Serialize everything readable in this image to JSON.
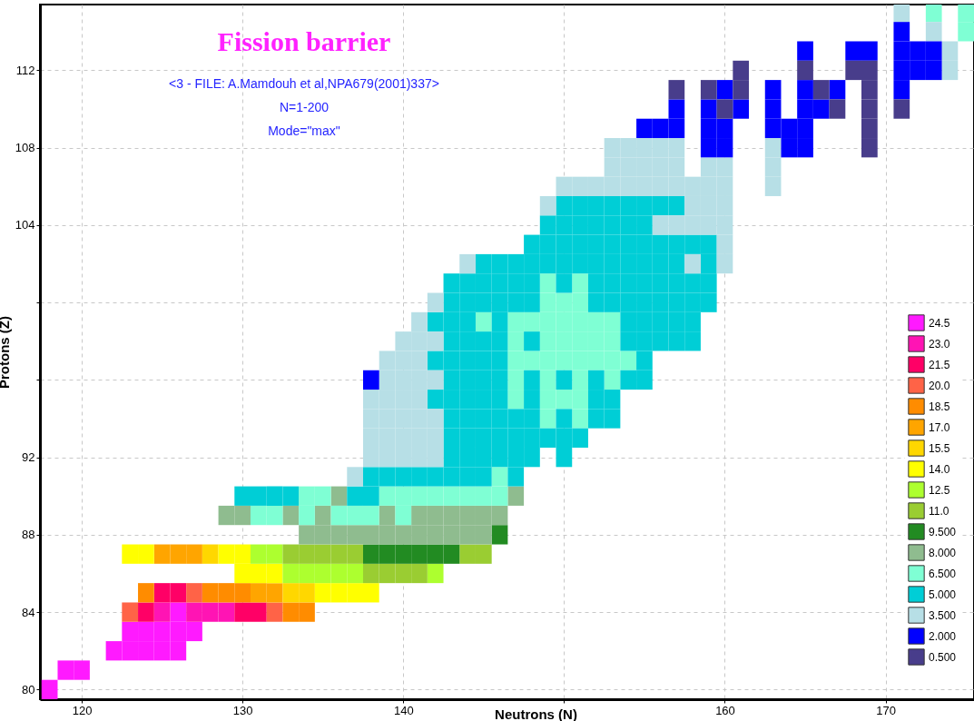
{
  "chart_data": {
    "type": "scatter",
    "title": "Fission barrier",
    "annotations": [
      "<3 - FILE: A.Mamdouh et al,NPA679(2001)337>",
      "N=1-200",
      "Mode=\"max\""
    ],
    "xlabel": "Neutrons (N)",
    "ylabel": "Protons (Z)",
    "marker": "square",
    "legend": "right",
    "series": [
      {
        "name": "24.5",
        "color": "#ff1aff",
        "x": [
          126,
          123,
          124,
          125,
          126,
          127,
          122,
          123,
          124,
          125,
          126,
          119,
          120,
          118
        ],
        "values": [
          84,
          83,
          83,
          83,
          83,
          83,
          82,
          82,
          82,
          82,
          82,
          81,
          81,
          80
        ]
      },
      {
        "name": "23.0",
        "color": "#ff14b4",
        "x": [
          125,
          127,
          128,
          129
        ],
        "values": [
          84,
          84,
          84,
          84
        ]
      },
      {
        "name": "21.5",
        "color": "#ff0066",
        "x": [
          125,
          126,
          124,
          130,
          131
        ],
        "values": [
          85,
          85,
          84,
          84,
          84
        ]
      },
      {
        "name": "20.0",
        "color": "#ff6347",
        "x": [
          127,
          123,
          132
        ],
        "values": [
          85,
          84,
          84
        ]
      },
      {
        "name": "18.5",
        "color": "#ff8c00",
        "x": [
          124,
          128,
          129,
          130,
          133,
          134
        ],
        "values": [
          85,
          85,
          85,
          85,
          84,
          84
        ]
      },
      {
        "name": "17.0",
        "color": "#ffa500",
        "x": [
          125,
          126,
          127,
          131,
          132
        ],
        "values": [
          87,
          87,
          87,
          85,
          85
        ]
      },
      {
        "name": "15.5",
        "color": "#ffd700",
        "x": [
          128,
          133,
          134
        ],
        "values": [
          87,
          85,
          85
        ]
      },
      {
        "name": "14.0",
        "color": "#ffff00",
        "x": [
          123,
          124,
          129,
          130,
          130,
          131,
          132,
          135,
          136,
          137,
          138
        ],
        "values": [
          87,
          87,
          87,
          87,
          86,
          86,
          86,
          85,
          85,
          85,
          85
        ]
      },
      {
        "name": "12.5",
        "color": "#adff2f",
        "x": [
          131,
          132,
          133,
          134,
          135,
          136,
          137,
          142
        ],
        "values": [
          87,
          87,
          86,
          86,
          86,
          86,
          86,
          86
        ]
      },
      {
        "name": "11.0",
        "color": "#9acd32",
        "x": [
          133,
          134,
          135,
          136,
          137,
          144,
          145,
          138,
          139,
          140,
          141
        ],
        "values": [
          87,
          87,
          87,
          87,
          87,
          87,
          87,
          86,
          86,
          86,
          86
        ]
      },
      {
        "name": "9.500",
        "color": "#228b22",
        "x": [
          146,
          138,
          139,
          140,
          141,
          142,
          143
        ],
        "values": [
          88,
          87,
          87,
          87,
          87,
          87,
          87
        ]
      },
      {
        "name": "8.000",
        "color": "#8fbc8f",
        "x": [
          136,
          147,
          129,
          130,
          133,
          135,
          139,
          141,
          142,
          143,
          144,
          145,
          146,
          134,
          135,
          136,
          137,
          138,
          139,
          140,
          141,
          142,
          143,
          144,
          145
        ],
        "values": [
          90,
          90,
          89,
          89,
          89,
          89,
          89,
          89,
          89,
          89,
          89,
          89,
          89,
          88,
          88,
          88,
          88,
          88,
          88,
          88,
          88,
          88,
          88,
          88,
          88
        ]
      },
      {
        "name": "6.500",
        "color": "#7fffd4",
        "x": [
          173,
          175,
          175,
          149,
          151,
          149,
          150,
          151,
          145,
          147,
          148,
          149,
          150,
          151,
          152,
          153,
          147,
          149,
          150,
          151,
          152,
          153,
          147,
          148,
          149,
          150,
          151,
          152,
          153,
          154,
          147,
          149,
          151,
          153,
          147,
          149,
          150,
          151,
          149,
          151,
          146,
          134,
          135,
          139,
          140,
          141,
          142,
          143,
          144,
          145,
          146,
          131,
          132,
          134,
          136,
          137,
          138,
          140
        ],
        "values": [
          115,
          115,
          114,
          101,
          101,
          100,
          100,
          100,
          99,
          99,
          99,
          99,
          99,
          99,
          99,
          99,
          98,
          98,
          98,
          98,
          98,
          98,
          97,
          97,
          97,
          97,
          97,
          97,
          97,
          97,
          96,
          96,
          96,
          96,
          95,
          95,
          95,
          95,
          94,
          94,
          91,
          90,
          90,
          90,
          90,
          90,
          90,
          90,
          90,
          90,
          90,
          89,
          89,
          89,
          89,
          89,
          89,
          89
        ]
      },
      {
        "name": "5.000",
        "color": "#00ced6",
        "x": [
          150,
          151,
          152,
          153,
          154,
          155,
          156,
          157,
          149,
          150,
          151,
          152,
          153,
          154,
          155,
          148,
          149,
          150,
          151,
          152,
          153,
          154,
          155,
          156,
          157,
          158,
          159,
          145,
          146,
          147,
          148,
          149,
          150,
          151,
          152,
          153,
          154,
          155,
          156,
          157,
          159,
          143,
          144,
          145,
          146,
          147,
          148,
          150,
          152,
          153,
          154,
          155,
          156,
          157,
          158,
          159,
          143,
          144,
          145,
          146,
          147,
          148,
          152,
          153,
          154,
          155,
          156,
          157,
          158,
          159,
          142,
          143,
          144,
          146,
          154,
          155,
          156,
          157,
          158,
          143,
          144,
          145,
          146,
          148,
          154,
          155,
          156,
          157,
          158,
          142,
          143,
          144,
          145,
          146,
          155,
          143,
          144,
          145,
          146,
          148,
          150,
          152,
          154,
          155,
          142,
          143,
          144,
          145,
          146,
          148,
          152,
          153,
          143,
          144,
          145,
          146,
          147,
          148,
          150,
          152,
          153,
          143,
          144,
          145,
          146,
          147,
          148,
          149,
          150,
          151,
          143,
          144,
          145,
          146,
          147,
          148,
          150,
          138,
          139,
          140,
          141,
          142,
          143,
          144,
          145,
          147,
          130,
          131,
          132,
          133,
          137,
          138
        ],
        "values": [
          105,
          105,
          105,
          105,
          105,
          105,
          105,
          105,
          104,
          104,
          104,
          104,
          104,
          104,
          104,
          103,
          103,
          103,
          103,
          103,
          103,
          103,
          103,
          103,
          103,
          103,
          103,
          102,
          102,
          102,
          102,
          102,
          102,
          102,
          102,
          102,
          102,
          102,
          102,
          102,
          102,
          101,
          101,
          101,
          101,
          101,
          101,
          101,
          101,
          101,
          101,
          101,
          101,
          101,
          101,
          101,
          100,
          100,
          100,
          100,
          100,
          100,
          100,
          100,
          100,
          100,
          100,
          100,
          100,
          100,
          99,
          99,
          99,
          99,
          99,
          99,
          99,
          99,
          99,
          98,
          98,
          98,
          98,
          98,
          98,
          98,
          98,
          98,
          98,
          97,
          97,
          97,
          97,
          97,
          97,
          96,
          96,
          96,
          96,
          96,
          96,
          96,
          96,
          96,
          95,
          95,
          95,
          95,
          95,
          95,
          95,
          95,
          94,
          94,
          94,
          94,
          94,
          94,
          94,
          94,
          94,
          93,
          93,
          93,
          93,
          93,
          93,
          93,
          93,
          93,
          92,
          92,
          92,
          92,
          92,
          92,
          92,
          91,
          91,
          91,
          91,
          91,
          91,
          91,
          91,
          91,
          90,
          90,
          90,
          90,
          90,
          90
        ]
      },
      {
        "name": "3.500",
        "color": "#b7dfe6",
        "x": [
          171,
          173,
          174,
          174,
          153,
          154,
          155,
          156,
          157,
          163,
          153,
          154,
          155,
          156,
          157,
          159,
          160,
          163,
          150,
          151,
          152,
          153,
          154,
          155,
          156,
          157,
          158,
          159,
          160,
          163,
          149,
          158,
          159,
          160,
          156,
          157,
          158,
          159,
          160,
          160,
          144,
          158,
          160,
          142,
          141,
          140,
          141,
          142,
          139,
          140,
          141,
          139,
          140,
          141,
          142,
          138,
          139,
          140,
          141,
          138,
          139,
          140,
          141,
          142,
          138,
          139,
          140,
          141,
          142,
          138,
          139,
          140,
          141,
          142,
          137
        ],
        "values": [
          115,
          114,
          113,
          112,
          108,
          108,
          108,
          108,
          108,
          108,
          107,
          107,
          107,
          107,
          107,
          107,
          107,
          107,
          106,
          106,
          106,
          106,
          106,
          106,
          106,
          106,
          106,
          106,
          106,
          106,
          105,
          105,
          105,
          105,
          104,
          104,
          104,
          104,
          104,
          103,
          102,
          102,
          102,
          100,
          99,
          98,
          98,
          98,
          97,
          97,
          97,
          96,
          96,
          96,
          96,
          95,
          95,
          95,
          95,
          94,
          94,
          94,
          94,
          94,
          93,
          93,
          93,
          93,
          93,
          92,
          92,
          92,
          92,
          92,
          91
        ]
      },
      {
        "name": "2.000",
        "color": "#0000ff",
        "x": [
          171,
          165,
          168,
          169,
          171,
          172,
          173,
          171,
          172,
          173,
          160,
          163,
          165,
          167,
          171,
          157,
          159,
          161,
          163,
          165,
          166,
          155,
          156,
          157,
          159,
          160,
          163,
          164,
          165,
          159,
          160,
          164,
          165,
          138
        ],
        "values": [
          114,
          113,
          113,
          113,
          113,
          113,
          113,
          112,
          112,
          112,
          111,
          111,
          111,
          111,
          111,
          110,
          110,
          110,
          110,
          110,
          110,
          109,
          109,
          109,
          109,
          109,
          109,
          109,
          109,
          108,
          108,
          108,
          108,
          96
        ]
      },
      {
        "name": "0.500",
        "color": "#483d8b",
        "x": [
          161,
          165,
          168,
          169,
          157,
          159,
          161,
          166,
          169,
          160,
          167,
          169,
          171,
          169,
          169
        ],
        "values": [
          112,
          112,
          112,
          112,
          111,
          111,
          111,
          111,
          111,
          110,
          110,
          110,
          110,
          109,
          108
        ]
      }
    ],
    "xlim": [
      117.4,
      175.5
    ],
    "xticks": [
      120,
      130,
      140,
      {
        "value": 150,
        "label": null
      },
      160,
      170
    ],
    "ylim": [
      79.5,
      115.4
    ],
    "yticks": [
      80,
      84,
      88,
      92,
      {
        "value": 96,
        "label": null
      },
      {
        "value": 100,
        "label": null
      },
      104,
      108,
      112
    ],
    "grid": true
  }
}
